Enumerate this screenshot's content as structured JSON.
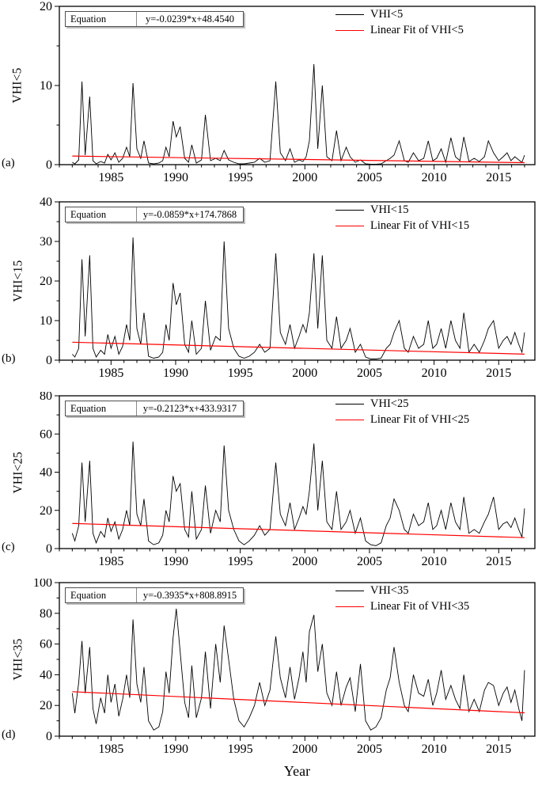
{
  "chart_data": {
    "type": "line",
    "x_label": "Year",
    "xlim": [
      1981.0,
      2017.8
    ],
    "xticks": [
      1985,
      1990,
      1995,
      2000,
      2005,
      2010,
      2015
    ],
    "x_minor_step": 1,
    "grid": "off",
    "legend_position": "top-right-inside",
    "colors": {
      "series": "#000000",
      "fit": "#ff0000"
    },
    "x": [
      1982.0,
      1982.2,
      1982.5,
      1982.75,
      1983.0,
      1983.35,
      1983.6,
      1983.85,
      1984.2,
      1984.5,
      1984.75,
      1985.0,
      1985.3,
      1985.6,
      1985.9,
      1986.2,
      1986.45,
      1986.7,
      1987.0,
      1987.3,
      1987.55,
      1987.9,
      1988.3,
      1988.7,
      1989.0,
      1989.25,
      1989.5,
      1989.8,
      1990.05,
      1990.35,
      1990.7,
      1991.0,
      1991.25,
      1991.6,
      1992.0,
      1992.3,
      1992.7,
      1993.1,
      1993.45,
      1993.75,
      1994.1,
      1994.5,
      1994.9,
      1995.3,
      1995.7,
      1996.1,
      1996.5,
      1996.9,
      1997.3,
      1997.75,
      1998.1,
      1998.5,
      1998.85,
      1999.2,
      1999.55,
      1999.85,
      2000.1,
      2000.35,
      2000.7,
      2001.0,
      2001.35,
      2001.7,
      2002.1,
      2002.45,
      2002.8,
      2003.2,
      2003.5,
      2003.9,
      2004.3,
      2004.7,
      2005.1,
      2005.5,
      2005.9,
      2006.3,
      2006.6,
      2006.9,
      2007.3,
      2007.7,
      2008.0,
      2008.4,
      2008.8,
      2009.2,
      2009.55,
      2009.9,
      2010.2,
      2010.55,
      2010.9,
      2011.3,
      2011.65,
      2012.0,
      2012.3,
      2012.7,
      2013.1,
      2013.5,
      2013.9,
      2014.2,
      2014.6,
      2015.0,
      2015.35,
      2015.65,
      2015.95,
      2016.25,
      2016.55,
      2016.8,
      2017.0
    ],
    "panels": [
      {
        "panel_label": "(a)",
        "ylabel": "VHI<5",
        "ylim": [
          0,
          20
        ],
        "yticks": [
          0,
          10,
          20
        ],
        "y_minor_step": 5,
        "equation_label": "Equation",
        "equation": "y=-0.0239*x+48.4540",
        "fit": {
          "slope": -0.0239,
          "intercept": 48.454
        },
        "legend": [
          {
            "label": "VHI<5",
            "color": "#000000"
          },
          {
            "label": "Linear Fit of VHI<5",
            "color": "#ff0000"
          }
        ],
        "values": [
          0.3,
          0.1,
          0.6,
          10.5,
          1.2,
          8.6,
          0.5,
          0.1,
          0.4,
          0.2,
          1.3,
          0.6,
          1.5,
          0.3,
          0.8,
          2.2,
          1.0,
          10.3,
          2.0,
          0.8,
          3.0,
          0.2,
          0.1,
          0.2,
          0.5,
          2.2,
          1.0,
          5.5,
          3.5,
          4.8,
          0.8,
          0.3,
          2.5,
          0.2,
          0.6,
          6.3,
          0.5,
          0.8,
          0.5,
          1.8,
          0.6,
          0.3,
          0.1,
          0.1,
          0.2,
          0.3,
          0.8,
          0.3,
          0.5,
          10.5,
          1.5,
          0.5,
          2.0,
          0.3,
          0.6,
          0.4,
          1.0,
          3.0,
          12.7,
          2.0,
          10.0,
          1.0,
          0.5,
          4.3,
          0.5,
          2.2,
          1.0,
          0.3,
          0.6,
          0.1,
          0.05,
          0.05,
          0.1,
          0.5,
          0.8,
          1.2,
          3.0,
          0.5,
          0.3,
          1.5,
          0.5,
          0.8,
          3.0,
          0.5,
          0.8,
          2.0,
          0.3,
          3.4,
          1.0,
          0.5,
          3.5,
          0.4,
          0.8,
          0.4,
          1.0,
          3.0,
          1.5,
          0.5,
          1.0,
          1.5,
          0.5,
          1.0,
          0.6,
          0.3,
          1.2
        ]
      },
      {
        "panel_label": "(b)",
        "ylabel": "VHI<15",
        "ylim": [
          0,
          40
        ],
        "yticks": [
          0,
          10,
          20,
          30,
          40
        ],
        "y_minor_step": 5,
        "equation_label": "Equation",
        "equation": "y=-0.0859*x+174.7868",
        "fit": {
          "slope": -0.0859,
          "intercept": 174.7868
        },
        "legend": [
          {
            "label": "VHI<15",
            "color": "#000000"
          },
          {
            "label": "Linear Fit of VHI<15",
            "color": "#ff0000"
          }
        ],
        "values": [
          1.5,
          0.8,
          3,
          25.5,
          6,
          26.5,
          3,
          0.8,
          2.5,
          1.5,
          6.5,
          3,
          6,
          1.5,
          3.5,
          9,
          5,
          31,
          8,
          4,
          12,
          1,
          0.5,
          0.8,
          2,
          9,
          5,
          19.5,
          14,
          17,
          4,
          2,
          10,
          1.5,
          3,
          15,
          2.5,
          6,
          5,
          30,
          8,
          3,
          1,
          0.5,
          1,
          2,
          4,
          2,
          3,
          27,
          7,
          4,
          9,
          3,
          6,
          9,
          7,
          12,
          27,
          8,
          26.5,
          5,
          3,
          11,
          3,
          5,
          8,
          2,
          4,
          0.8,
          0.3,
          0.3,
          0.5,
          3,
          4,
          7,
          10,
          3,
          2,
          6,
          3,
          4,
          10,
          3,
          4,
          8,
          3,
          10,
          5,
          3,
          12,
          2,
          4,
          2,
          5,
          8,
          10,
          3,
          5,
          6,
          4,
          7,
          4,
          2,
          7
        ]
      },
      {
        "panel_label": "(c)",
        "ylabel": "VHI<25",
        "ylim": [
          0,
          80
        ],
        "yticks": [
          0,
          20,
          40,
          60,
          80
        ],
        "y_minor_step": 10,
        "equation_label": "Equation",
        "equation": "y=-0.2123*x+433.9317",
        "fit": {
          "slope": -0.2123,
          "intercept": 433.9317
        },
        "legend": [
          {
            "label": "VHI<25",
            "color": "#000000"
          },
          {
            "label": "Linear Fit of VHI<25",
            "color": "#ff0000"
          }
        ],
        "values": [
          8,
          4,
          12,
          45,
          14,
          46,
          8,
          3,
          9,
          6,
          16,
          9,
          14,
          5,
          10,
          20,
          12,
          56,
          18,
          12,
          26,
          4,
          2,
          3,
          7,
          20,
          14,
          38,
          30,
          34,
          10,
          6,
          30,
          5,
          10,
          33,
          8,
          20,
          14,
          54,
          20,
          10,
          4,
          2,
          4,
          7,
          12,
          7,
          10,
          45,
          18,
          12,
          24,
          10,
          16,
          22,
          18,
          30,
          55,
          20,
          46,
          14,
          10,
          30,
          10,
          14,
          20,
          8,
          16,
          4,
          2,
          1.5,
          3,
          12,
          16,
          26,
          20,
          10,
          8,
          18,
          12,
          14,
          24,
          10,
          12,
          20,
          10,
          24,
          14,
          10,
          27,
          8,
          10,
          8,
          14,
          18,
          27,
          10,
          13,
          14,
          11,
          16,
          10,
          6,
          21
        ]
      },
      {
        "panel_label": "(d)",
        "ylabel": "VHI<35",
        "ylim": [
          0,
          100
        ],
        "yticks": [
          0,
          20,
          40,
          60,
          80,
          100
        ],
        "y_minor_step": 10,
        "equation_label": "Equation",
        "equation": "y=-0.3935*x+808.8915",
        "fit": {
          "slope": -0.3935,
          "intercept": 808.8915
        },
        "legend": [
          {
            "label": "VHI<35",
            "color": "#000000"
          },
          {
            "label": "Linear Fit of VHI<35",
            "color": "#ff0000"
          }
        ],
        "values": [
          28,
          15,
          35,
          62,
          28,
          58,
          18,
          8,
          25,
          15,
          40,
          22,
          34,
          13,
          24,
          40,
          25,
          76,
          34,
          22,
          45,
          10,
          4,
          6,
          16,
          42,
          28,
          64,
          83,
          55,
          22,
          12,
          46,
          12,
          25,
          55,
          18,
          60,
          35,
          72,
          50,
          24,
          10,
          6,
          12,
          20,
          35,
          20,
          30,
          65,
          38,
          25,
          45,
          24,
          38,
          55,
          35,
          68,
          79,
          42,
          60,
          28,
          20,
          42,
          20,
          32,
          38,
          16,
          47,
          10,
          4,
          6,
          12,
          30,
          38,
          58,
          35,
          20,
          16,
          40,
          28,
          26,
          37,
          20,
          28,
          43,
          24,
          33,
          24,
          18,
          40,
          16,
          24,
          16,
          30,
          35,
          33,
          20,
          28,
          32,
          22,
          30,
          18,
          10,
          43
        ]
      }
    ]
  }
}
